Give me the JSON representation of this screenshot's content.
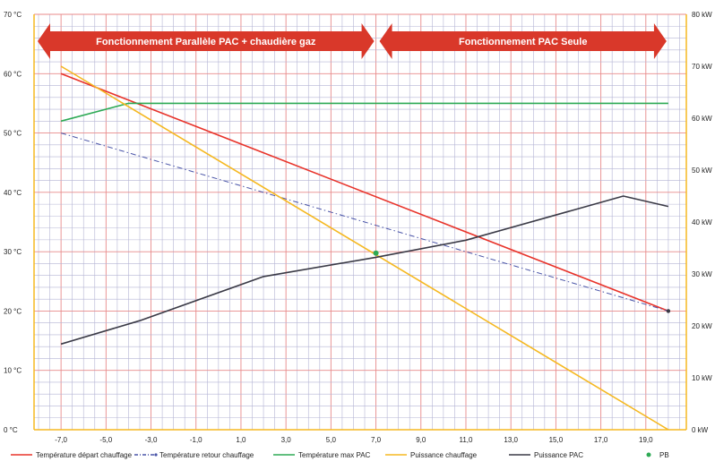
{
  "chart_data": {
    "type": "line",
    "x_ticks": [
      "-7,0",
      "-5,0",
      "-3,0",
      "-1,0",
      "1,0",
      "3,0",
      "5,0",
      "7,0",
      "9,0",
      "11,0",
      "13,0",
      "15,0",
      "17,0",
      "19,0"
    ],
    "y_left_ticks": [
      "0 °C",
      "10 °C",
      "20 °C",
      "30 °C",
      "40 °C",
      "50 °C",
      "60 °C",
      "70 °C"
    ],
    "y_right_ticks": [
      "0 kW",
      "10 kW",
      "20 kW",
      "30 kW",
      "40 kW",
      "50 kW",
      "60 kW",
      "70 kW",
      "80 kW"
    ],
    "xlim": [
      -8.2,
      20.8
    ],
    "ylim_left": [
      0,
      70
    ],
    "ylim_right": [
      0,
      80
    ],
    "banners": [
      {
        "label": "Fonctionnement Parallèle PAC + chaudière gaz",
        "x_from": -8.2,
        "x_to": 7
      },
      {
        "label": "Fonctionnement PAC Seule",
        "x_from": 7,
        "x_to": 20
      }
    ],
    "series": [
      {
        "name": "Température départ chauffage",
        "axis": "left",
        "color": "#e8332a",
        "style": "solid",
        "points": [
          [
            -7,
            60
          ],
          [
            20,
            20
          ]
        ]
      },
      {
        "name": "Température retour chauffage",
        "axis": "left",
        "color": "#4a55a8",
        "style": "dashdot",
        "points": [
          [
            -7,
            50
          ],
          [
            20,
            20
          ]
        ]
      },
      {
        "name": "Température max PAC",
        "axis": "left",
        "color": "#2eaa55",
        "style": "solid",
        "points": [
          [
            -7,
            52
          ],
          [
            -4,
            55
          ],
          [
            20,
            55
          ]
        ]
      },
      {
        "name": "Puissance chauffage",
        "axis": "right",
        "color": "#f5b820",
        "style": "solid",
        "points": [
          [
            -7,
            70
          ],
          [
            20,
            0
          ]
        ]
      },
      {
        "name": "Puissance PAC",
        "axis": "right",
        "color": "#3a3a46",
        "style": "solid",
        "points": [
          [
            -7,
            16.5
          ],
          [
            -3.5,
            21
          ],
          [
            2,
            29.5
          ],
          [
            7,
            33.2
          ],
          [
            11,
            36.5
          ],
          [
            18,
            45
          ],
          [
            20,
            43
          ]
        ]
      }
    ],
    "points": [
      {
        "name": "PB",
        "axis": "right",
        "x": 7,
        "y": 34,
        "color": "#2eaa55"
      }
    ],
    "legend": [
      {
        "label": "Température départ chauffage",
        "color": "#e8332a",
        "style": "solid"
      },
      {
        "label": "Température retour chauffage",
        "color": "#4a55a8",
        "style": "dashdot"
      },
      {
        "label": "Température max PAC",
        "color": "#2eaa55",
        "style": "solid"
      },
      {
        "label": "Puissance chauffage",
        "color": "#f5b820",
        "style": "solid"
      },
      {
        "label": "Puissance PAC",
        "color": "#3a3a46",
        "style": "solid"
      },
      {
        "label": "PB",
        "color": "#2eaa55",
        "style": "dot"
      }
    ],
    "legend_position": "bottom",
    "grid": true,
    "colors": {
      "axis": "#f5b820",
      "grid_minor": "#b4b4d4",
      "grid_major": "#e88a8a",
      "banner": "#d9382a"
    }
  }
}
